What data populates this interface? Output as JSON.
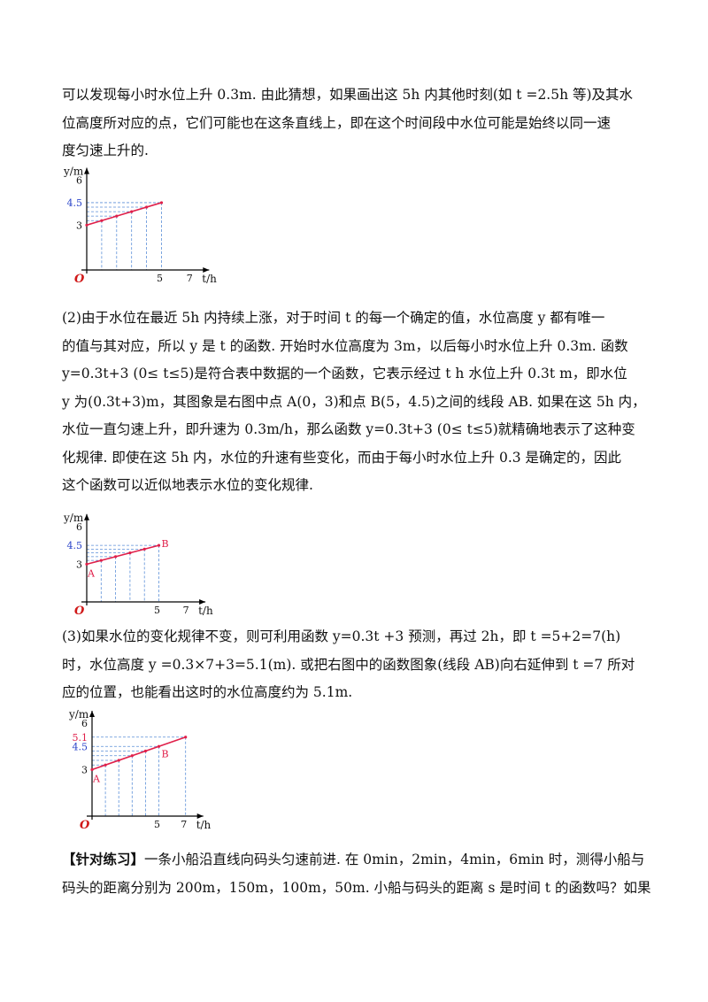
{
  "para1": [
    "可以发现每小时水位上升 0.3m. 由此猜想，如果画出这 5h 内其他时刻(如 t =2.5h 等)及其水",
    "位高度所对应的点，它们可能也在这条直线上，即在这个时间段中水位可能是始终以同一速",
    "度匀速上升的."
  ],
  "para2": [
    "(2)由于水位在最近 5h 内持续上涨，对于时间  t 的每一个确定的值，水位高度  y 都有唯一",
    "的值与其对应，所以  y 是  t 的函数. 开始时水位高度为 3m，以后每小时水位上升 0.3m. 函数",
    "y=0.3t+3 (0≤ t≤5)是符合表中数据的一个函数，它表示经过  t h 水位上升 0.3t m，即水位",
    "y 为(0.3t+3)m，其图象是右图中点 A(0，3)和点 B(5，4.5)之间的线段 AB. 如果在这 5h 内，",
    "水位一直匀速上升，即升速为 0.3m/h，那么函数 y=0.3t+3 (0≤ t≤5)就精确地表示了这种变",
    "化规律. 即使在这 5h 内，水位的升速有些变化，而由于每小时水位上升 0.3 是确定的，因此",
    "这个函数可以近似地表示水位的变化规律."
  ],
  "para3": [
    "(3)如果水位的变化规律不变，则可利用函数  y=0.3t +3  预测，再过 2h，即  t =5+2=7(h)",
    "时，水位高度  y =0.3×7+3=5.1(m). 或把右图中的函数图象(线段 AB)向右延伸到  t =7 所对",
    "应的位置，也能看出这时的水位高度约为 5.1m."
  ],
  "practice": {
    "tag": "【针对练习】",
    "lines": [
      "一条小船沿直线向码头匀速前进. 在 0min，2min，4min，6min 时，测得小船与",
      "码头的距离分别为 200m，150m，100m，50m. 小船与码头的距离  s  是时间  t  的函数吗？如果"
    ]
  },
  "chart_data": [
    {
      "type": "line",
      "xlabel": "t/h",
      "ylabel": "y/m",
      "x_ticks": [
        "5",
        "7"
      ],
      "y_ticks": [
        "6",
        "4.5",
        "3"
      ],
      "origin": "O",
      "series": [
        {
          "x": [
            0,
            5
          ],
          "y": [
            3,
            4.5
          ]
        }
      ],
      "points": [
        [
          0,
          3
        ],
        [
          1,
          3.3
        ],
        [
          2,
          3.6
        ],
        [
          3,
          3.9
        ],
        [
          4,
          4.2
        ],
        [
          5,
          4.5
        ]
      ],
      "xlim": [
        0,
        7
      ],
      "ylim": [
        0,
        6
      ]
    },
    {
      "type": "line",
      "xlabel": "t/h",
      "ylabel": "y/m",
      "x_ticks": [
        "5",
        "7"
      ],
      "y_ticks": [
        "6",
        "4.5",
        "3"
      ],
      "origin": "O",
      "point_labels": [
        "A",
        "B"
      ],
      "series": [
        {
          "x": [
            0,
            5
          ],
          "y": [
            3,
            4.5
          ]
        }
      ],
      "points": [
        [
          0,
          3
        ],
        [
          1,
          3.3
        ],
        [
          2,
          3.6
        ],
        [
          3,
          3.9
        ],
        [
          4,
          4.2
        ],
        [
          5,
          4.5
        ]
      ],
      "xlim": [
        0,
        7
      ],
      "ylim": [
        0,
        6
      ]
    },
    {
      "type": "line",
      "xlabel": "t/h",
      "ylabel": "y/m",
      "x_ticks": [
        "5",
        "7"
      ],
      "y_ticks": [
        "6",
        "5.1",
        "4.5",
        "3"
      ],
      "origin": "O",
      "point_labels": [
        "A",
        "B"
      ],
      "series": [
        {
          "x": [
            0,
            7
          ],
          "y": [
            3,
            5.1
          ]
        }
      ],
      "points": [
        [
          0,
          3
        ],
        [
          1,
          3.3
        ],
        [
          2,
          3.6
        ],
        [
          3,
          3.9
        ],
        [
          4,
          4.2
        ],
        [
          5,
          4.5
        ],
        [
          7,
          5.1
        ]
      ],
      "xlim": [
        0,
        7
      ],
      "ylim": [
        0,
        6
      ]
    }
  ],
  "colors": {
    "line": "#e0204a",
    "guide": "#5b8fd8",
    "tick_blue": "#2a44c9",
    "tick_red": "#e0204a",
    "origin": "#d01818"
  }
}
